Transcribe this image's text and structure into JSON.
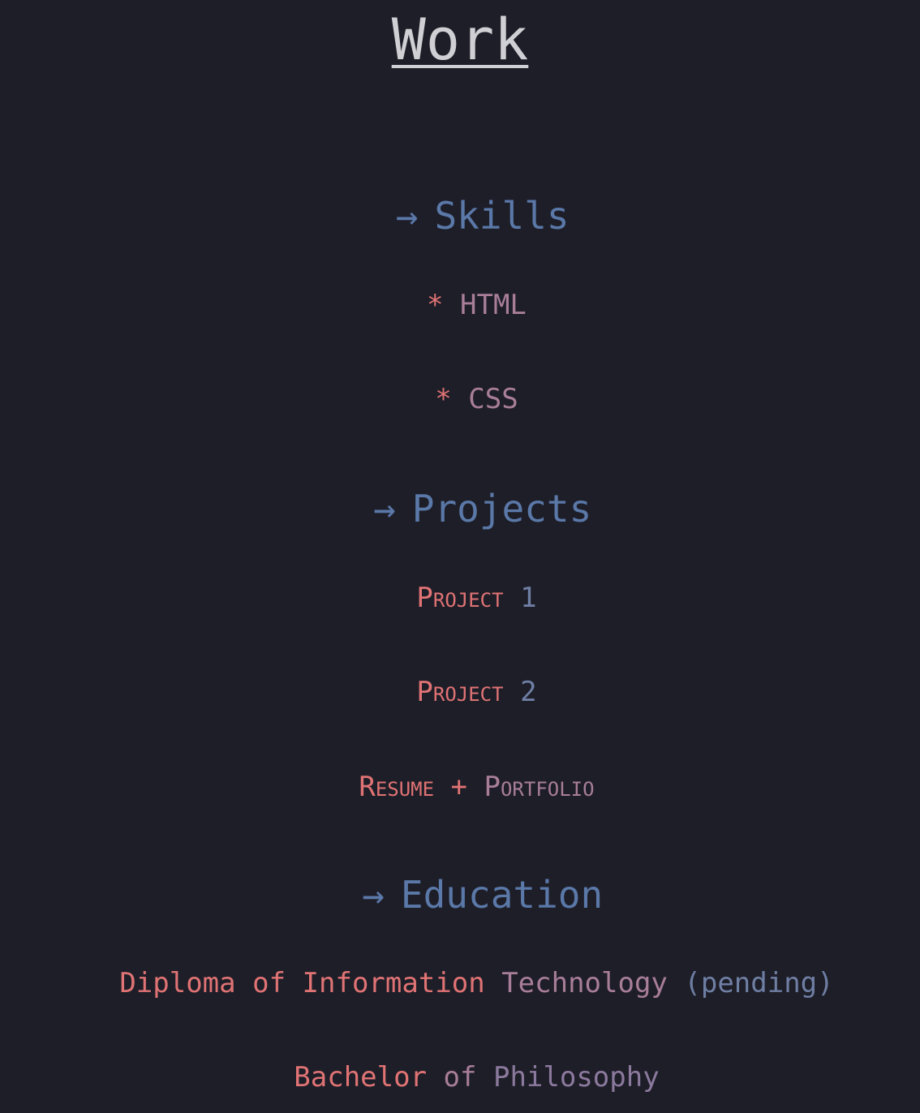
{
  "colors": {
    "background": "#1e1e28",
    "title": "#cfcfd4",
    "section": "#5a78a8",
    "red": "#e07374",
    "mauve": "#a87e98",
    "purple": "#8c7a9e",
    "slate": "#6f7fa4",
    "blue": "#5a78a8"
  },
  "page": {
    "title": "Work"
  },
  "skills": {
    "arrow": "→",
    "heading": "Skills",
    "items": [
      {
        "bullet": "*",
        "label": "HTML"
      },
      {
        "bullet": "*",
        "label": "CSS"
      }
    ]
  },
  "projects": {
    "arrow": "→",
    "heading": "Projects",
    "items": [
      {
        "word": "Project",
        "number": "1"
      },
      {
        "word": "Project",
        "number": "2"
      },
      {
        "first": "Resume",
        "plus": "+",
        "second": "Portfolio"
      }
    ]
  },
  "education": {
    "arrow": "→",
    "heading": "Education",
    "items": [
      {
        "w1": "Diploma",
        "w2": "of",
        "w3": "Information",
        "w4": "Technology",
        "w5": "(pending)"
      },
      {
        "w1": "Bachelor",
        "w2": "of",
        "w3": "Philosophy"
      }
    ]
  }
}
